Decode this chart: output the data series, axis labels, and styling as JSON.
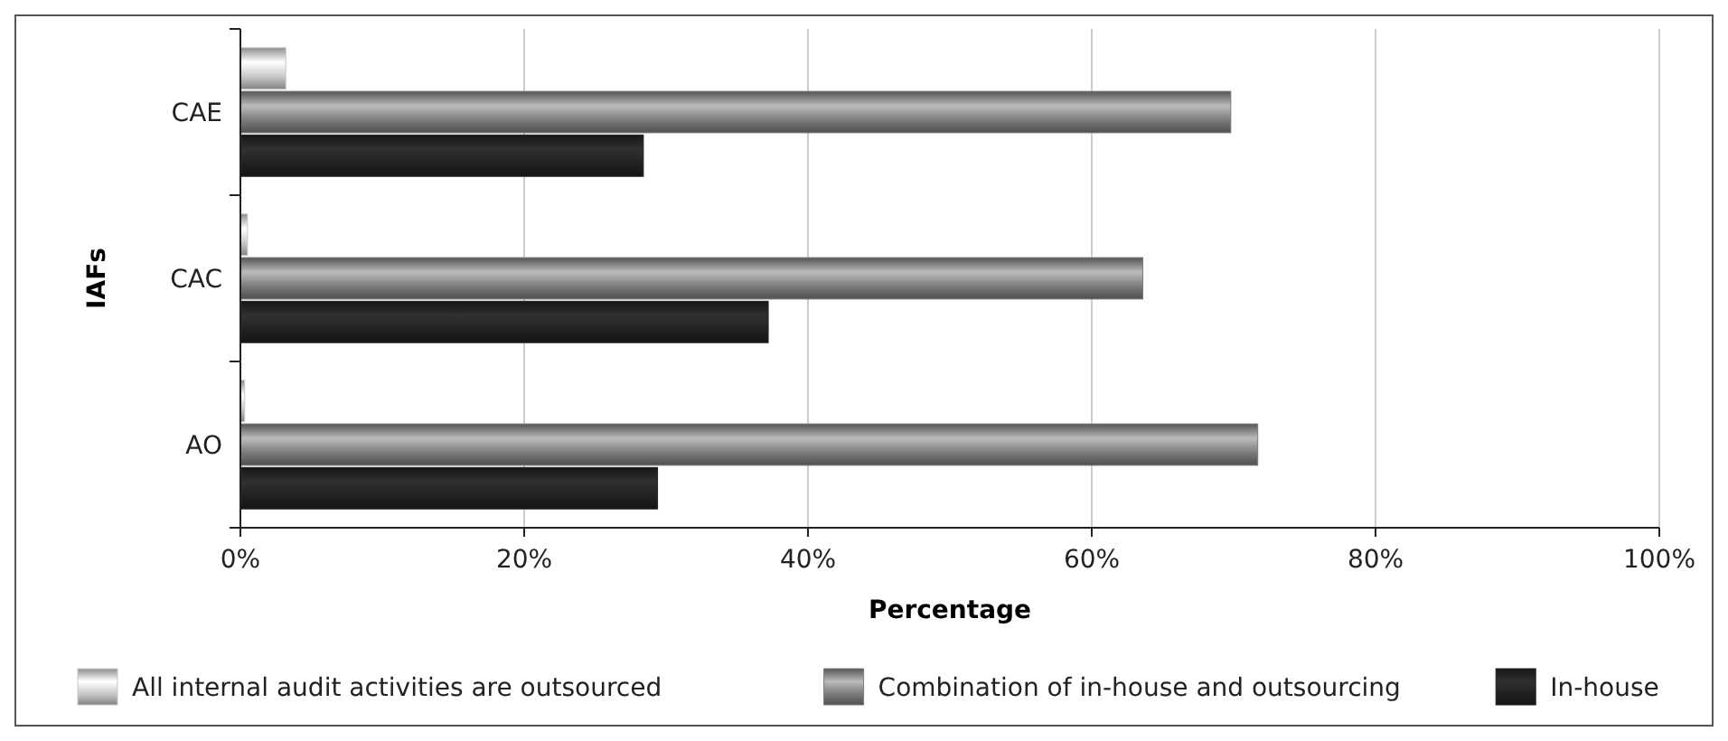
{
  "chart_data": {
    "type": "bar",
    "orientation": "horizontal",
    "xlabel": "Percentage",
    "ylabel": "IAFs",
    "categories": [
      "CAE",
      "CAC",
      "AO"
    ],
    "series": [
      {
        "name": "All internal audit activities are outsourced",
        "color": "#c8c8c8",
        "values": [
          3.2,
          0.5,
          0.3
        ]
      },
      {
        "name": "Combination of in-house and outsourcing",
        "color": "#7a7a7a",
        "values": [
          69.8,
          63.6,
          71.7
        ]
      },
      {
        "name": "In-house",
        "color": "#202020",
        "values": [
          28.4,
          37.2,
          29.4
        ]
      }
    ],
    "xlim": [
      0,
      100
    ],
    "xticks": [
      {
        "value": 0,
        "label": "0%"
      },
      {
        "value": 20,
        "label": "20%"
      },
      {
        "value": 40,
        "label": "40%"
      },
      {
        "value": 60,
        "label": "60%"
      },
      {
        "value": 80,
        "label": "80%"
      },
      {
        "value": 100,
        "label": "100%"
      }
    ],
    "grid": "x",
    "legend": "bottom"
  }
}
